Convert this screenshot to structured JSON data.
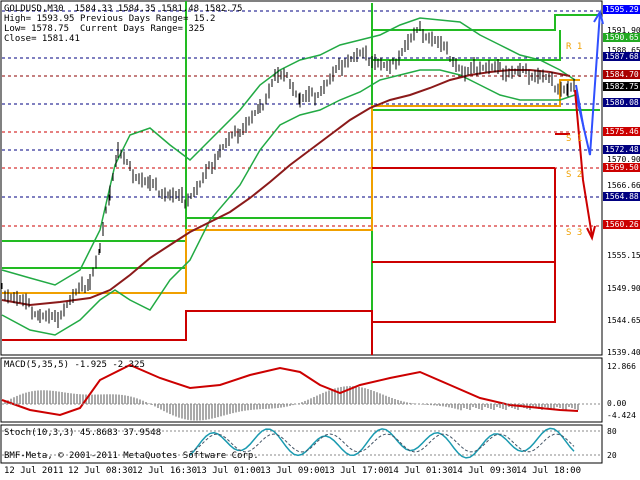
{
  "main": {
    "symbol_line": "GOLDUSD,M30  1584.33 1584.35 1581.48 1582.75",
    "high": "High= 1593.95",
    "low": "Low= 1578.75",
    "close": "Close= 1581.41",
    "prev_range": "Previous Days Range= 15.2",
    "curr_range": "Current Days Range= 325"
  },
  "pivot_labels": {
    "r1": "R 1",
    "s1": "S 1",
    "s2": "S 2",
    "s3": "S 3"
  },
  "price_axis": [
    "1595.29",
    "1591.90",
    "1590.65",
    "1588.65",
    "1587.68",
    "1584.70",
    "1582.75",
    "1580.08",
    "1575.46",
    "1572.48",
    "1570.90",
    "1569.50",
    "1566.66",
    "1564.88",
    "1560.26",
    "1555.15",
    "1549.90",
    "1544.65",
    "1539.40"
  ],
  "price_tags": [
    {
      "text": "1595.29",
      "bg": "#0000ff"
    },
    {
      "text": "1590.65",
      "bg": "#22aa22"
    },
    {
      "text": "1587.68",
      "bg": "#000080"
    },
    {
      "text": "1584.70",
      "bg": "#aa0000"
    },
    {
      "text": "1582.75",
      "bg": "#000000"
    },
    {
      "text": "1580.08",
      "bg": "#000080"
    },
    {
      "text": "1575.46",
      "bg": "#cc0000"
    },
    {
      "text": "1572.48",
      "bg": "#000080"
    },
    {
      "text": "1569.50",
      "bg": "#cc0000"
    },
    {
      "text": "1564.88",
      "bg": "#000080"
    },
    {
      "text": "1560.26",
      "bg": "#cc0000"
    }
  ],
  "macd": {
    "title": "MACD(5,35,5) -1.925 -2.325",
    "axis": [
      "12.866",
      "0.00",
      "-4.424"
    ]
  },
  "stoch": {
    "title": "Stoch(10,3,3) 45.8683 37.9548",
    "axis": [
      "80",
      "20"
    ]
  },
  "copyright": "BMF-Meta, © 2001-2011 MetaQuotes Software Corp.",
  "time_axis": [
    "12 Jul 2011",
    "12 Jul 08:30",
    "12 Jul 16:30",
    "13 Jul 01:00",
    "13 Jul 09:00",
    "13 Jul 17:00",
    "14 Jul 01:30",
    "14 Jul 09:30",
    "14 Jul 18:00"
  ],
  "colors": {
    "green": "#22bb22",
    "dark_red": "#8b0000",
    "orange": "#f0a000",
    "red": "#cc0000",
    "navy": "#000080",
    "blue": "#3050ff"
  }
}
